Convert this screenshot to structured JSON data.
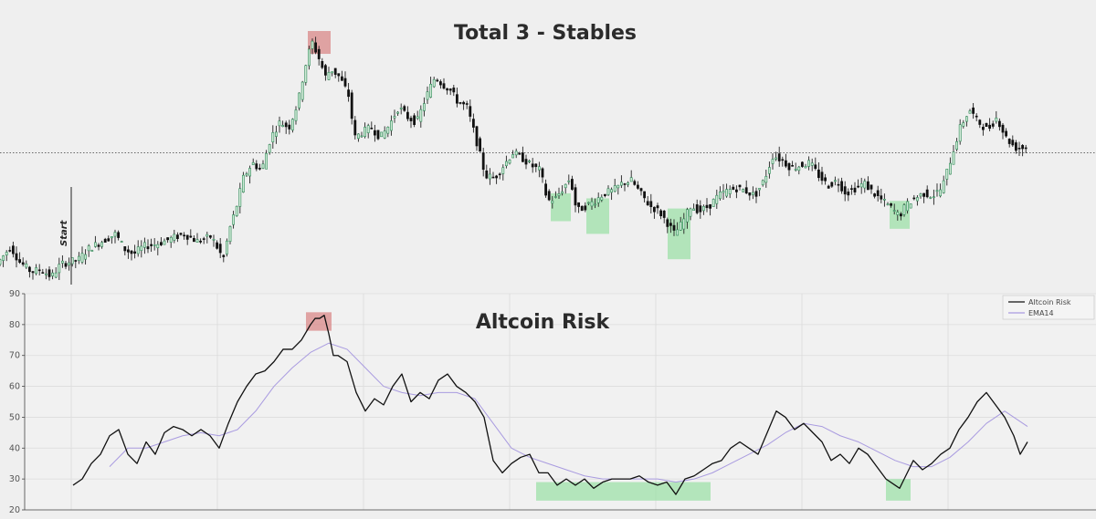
{
  "chart_data": [
    {
      "type": "candlestick",
      "title": "Total 3 - Stables",
      "annotation": "Start",
      "x_domain": [
        0,
        1130
      ],
      "y_domain": [
        0,
        1
      ],
      "reference_line": 0.52,
      "colors": {
        "up": "#2e8b57",
        "down": "#111111",
        "reference": "#555555",
        "peak_zone": "#d98888",
        "bottom_zone": "#9ee0a8"
      },
      "peak_zones": [
        {
          "x0": 337,
          "x1": 362,
          "y0": 0.91,
          "y1": 1.0
        }
      ],
      "bottom_zones": [
        {
          "x0": 603,
          "x1": 625,
          "y0": 0.25,
          "y1": 0.36
        },
        {
          "x0": 642,
          "x1": 667,
          "y0": 0.2,
          "y1": 0.34
        },
        {
          "x0": 731,
          "x1": 756,
          "y0": 0.1,
          "y1": 0.3
        },
        {
          "x0": 974,
          "x1": 996,
          "y0": 0.22,
          "y1": 0.33
        }
      ],
      "series": [
        {
          "x": [
            0,
            15,
            25,
            38,
            48,
            60,
            70,
            80,
            90,
            100,
            115,
            130,
            140,
            150,
            160,
            175,
            190,
            205,
            220,
            235,
            248,
            255,
            262,
            270,
            280,
            290,
            300,
            310,
            320,
            330,
            337,
            345,
            352,
            360,
            366,
            375,
            385,
            392,
            400,
            410,
            420,
            430,
            440,
            450,
            460,
            470,
            480,
            488,
            496,
            505,
            515,
            525,
            535,
            545,
            555,
            565,
            575,
            585,
            595,
            603,
            612,
            620,
            628,
            635,
            645,
            655,
            665,
            675,
            685,
            695,
            705,
            715,
            725,
            735,
            742,
            750,
            760,
            770,
            780,
            790,
            800,
            810,
            820,
            830,
            840,
            850,
            860,
            870,
            880,
            890,
            900,
            910,
            920,
            930,
            940,
            950,
            960,
            970,
            980,
            988,
            995,
            1005,
            1015,
            1025,
            1035,
            1045,
            1055,
            1065,
            1075,
            1085,
            1095,
            1105,
            1115,
            1125
          ],
          "y": [
            0.08,
            0.15,
            0.09,
            0.05,
            0.06,
            0.03,
            0.08,
            0.09,
            0.1,
            0.14,
            0.17,
            0.2,
            0.14,
            0.12,
            0.15,
            0.16,
            0.18,
            0.2,
            0.17,
            0.19,
            0.1,
            0.22,
            0.3,
            0.42,
            0.48,
            0.45,
            0.58,
            0.64,
            0.62,
            0.72,
            0.85,
            0.96,
            0.9,
            0.82,
            0.85,
            0.82,
            0.75,
            0.58,
            0.6,
            0.62,
            0.58,
            0.63,
            0.7,
            0.66,
            0.64,
            0.74,
            0.82,
            0.79,
            0.77,
            0.72,
            0.7,
            0.57,
            0.43,
            0.42,
            0.47,
            0.52,
            0.5,
            0.47,
            0.45,
            0.33,
            0.34,
            0.38,
            0.42,
            0.29,
            0.31,
            0.33,
            0.36,
            0.37,
            0.4,
            0.41,
            0.36,
            0.31,
            0.29,
            0.24,
            0.2,
            0.24,
            0.31,
            0.29,
            0.31,
            0.35,
            0.37,
            0.38,
            0.37,
            0.35,
            0.41,
            0.51,
            0.49,
            0.46,
            0.47,
            0.48,
            0.43,
            0.39,
            0.41,
            0.36,
            0.38,
            0.4,
            0.36,
            0.33,
            0.3,
            0.27,
            0.31,
            0.34,
            0.36,
            0.35,
            0.38,
            0.5,
            0.62,
            0.69,
            0.64,
            0.61,
            0.66,
            0.58,
            0.54,
            0.54
          ]
        }
      ]
    },
    {
      "type": "line",
      "title": "Altcoin Risk",
      "x_domain": [
        0,
        1130
      ],
      "ylim": [
        20,
        90
      ],
      "yticks": [
        20,
        30,
        40,
        50,
        60,
        70,
        80,
        90
      ],
      "grid": true,
      "legend_position": "top-right",
      "colors": {
        "peak_zone": "#d98888",
        "bottom_zone": "#9ee0a8"
      },
      "peak_zones": [
        {
          "x0": 335,
          "x1": 363,
          "y0": 78,
          "y1": 84
        }
      ],
      "bottom_zones": [
        {
          "x0": 587,
          "x1": 778,
          "y0": 23,
          "y1": 29
        },
        {
          "x0": 970,
          "x1": 997,
          "y0": 23,
          "y1": 30
        }
      ],
      "series": [
        {
          "name": "Altcoin Risk",
          "color": "#111111",
          "x": [
            80,
            90,
            100,
            110,
            120,
            130,
            140,
            150,
            160,
            170,
            180,
            190,
            200,
            210,
            220,
            230,
            240,
            250,
            260,
            270,
            280,
            290,
            300,
            310,
            320,
            330,
            340,
            345,
            350,
            355,
            360,
            365,
            370,
            380,
            390,
            400,
            410,
            420,
            430,
            440,
            450,
            460,
            470,
            480,
            490,
            500,
            510,
            520,
            530,
            540,
            550,
            560,
            570,
            580,
            590,
            600,
            610,
            620,
            630,
            640,
            650,
            660,
            670,
            680,
            690,
            700,
            710,
            720,
            730,
            740,
            750,
            760,
            770,
            780,
            790,
            800,
            810,
            820,
            830,
            840,
            850,
            860,
            870,
            880,
            890,
            900,
            910,
            920,
            930,
            940,
            950,
            960,
            970,
            980,
            985,
            990,
            1000,
            1010,
            1020,
            1030,
            1040,
            1050,
            1060,
            1070,
            1080,
            1090,
            1100,
            1110,
            1117,
            1125
          ],
          "y": [
            28,
            30,
            35,
            38,
            44,
            46,
            38,
            35,
            42,
            38,
            45,
            47,
            46,
            44,
            46,
            44,
            40,
            48,
            55,
            60,
            64,
            65,
            68,
            72,
            72,
            75,
            80,
            82,
            82,
            83,
            77,
            70,
            70,
            68,
            58,
            52,
            56,
            54,
            60,
            64,
            55,
            58,
            56,
            62,
            64,
            60,
            58,
            55,
            50,
            36,
            32,
            35,
            37,
            38,
            32,
            32,
            28,
            30,
            28,
            30,
            27,
            29,
            30,
            30,
            30,
            31,
            29,
            28,
            29,
            25,
            30,
            31,
            33,
            35,
            36,
            40,
            42,
            40,
            38,
            45,
            52,
            50,
            46,
            48,
            45,
            42,
            36,
            38,
            35,
            40,
            38,
            34,
            30,
            28,
            27,
            30,
            36,
            33,
            35,
            38,
            40,
            46,
            50,
            55,
            58,
            54,
            50,
            44,
            38,
            42
          ]
        },
        {
          "name": "EMA14",
          "color": "#a99be0",
          "x": [
            120,
            140,
            160,
            180,
            200,
            220,
            240,
            260,
            280,
            300,
            320,
            340,
            360,
            380,
            400,
            420,
            440,
            460,
            480,
            500,
            520,
            540,
            560,
            580,
            600,
            620,
            640,
            660,
            680,
            700,
            720,
            740,
            760,
            780,
            800,
            820,
            840,
            860,
            880,
            900,
            920,
            940,
            960,
            980,
            1000,
            1020,
            1040,
            1060,
            1080,
            1100,
            1125
          ],
          "y": [
            34,
            40,
            40,
            42,
            44,
            45,
            44,
            46,
            52,
            60,
            66,
            71,
            74,
            72,
            66,
            60,
            58,
            57,
            58,
            58,
            56,
            48,
            40,
            37,
            35,
            33,
            31,
            30,
            30,
            30,
            30,
            29,
            30,
            32,
            35,
            38,
            41,
            45,
            48,
            47,
            44,
            42,
            39,
            36,
            34,
            34,
            37,
            42,
            48,
            52,
            47
          ]
        }
      ]
    }
  ]
}
